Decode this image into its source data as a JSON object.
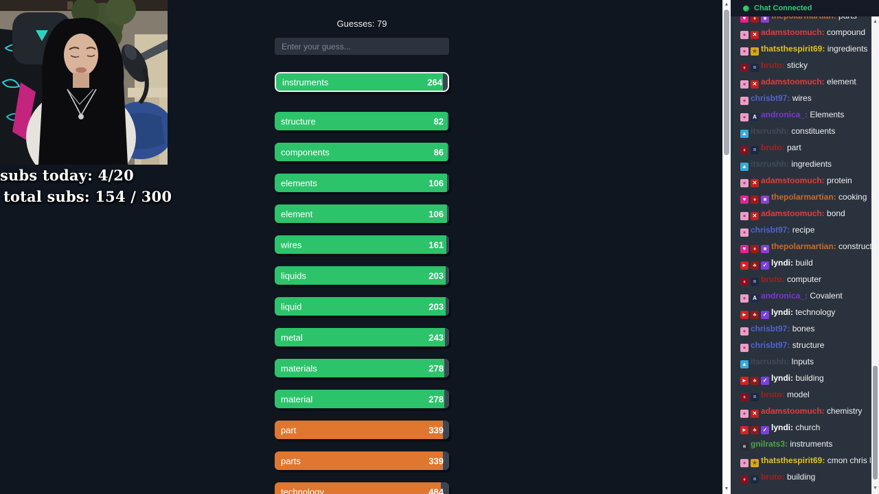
{
  "overlay": {
    "subs_today": "subs today: 4/20",
    "total_subs": "total subs: 154 / 300"
  },
  "game": {
    "guesses_label": "Guesses: 79",
    "input_placeholder": "Enter your guess...",
    "latest_guess": {
      "word": "instruments",
      "score": 264,
      "tier": "green"
    },
    "guesses": [
      {
        "word": "structure",
        "score": 82,
        "tier": "green"
      },
      {
        "word": "components",
        "score": 86,
        "tier": "green"
      },
      {
        "word": "elements",
        "score": 106,
        "tier": "green"
      },
      {
        "word": "element",
        "score": 106,
        "tier": "green"
      },
      {
        "word": "wires",
        "score": 161,
        "tier": "green"
      },
      {
        "word": "liquids",
        "score": 203,
        "tier": "green"
      },
      {
        "word": "liquid",
        "score": 203,
        "tier": "green"
      },
      {
        "word": "metal",
        "score": 243,
        "tier": "green"
      },
      {
        "word": "materials",
        "score": 278,
        "tier": "green"
      },
      {
        "word": "material",
        "score": 278,
        "tier": "green"
      },
      {
        "word": "part",
        "score": 339,
        "tier": "orange"
      },
      {
        "word": "parts",
        "score": 339,
        "tier": "orange"
      },
      {
        "word": "technology",
        "score": 484,
        "tier": "orange"
      }
    ],
    "tier_colors": {
      "green": "#2cc36b",
      "orange": "#e0772f",
      "track": "#3c4653"
    }
  },
  "icons": {
    "scroll_up": "▲",
    "scroll_down": "▼"
  },
  "chat": {
    "header": {
      "label": "Chat Connected",
      "color": "#2ecf76"
    },
    "badge_styles": {
      "pink-heart": {
        "bg": "#e9218e",
        "glyph": "♥",
        "fg": "#ffffff"
      },
      "red-mini": {
        "bg": "#a31818",
        "glyph": "♦",
        "fg": "#f2bcbc"
      },
      "purple-gift": {
        "bg": "#8a3fd1",
        "glyph": "■",
        "fg": "#e6d6ff"
      },
      "pink-boba": {
        "bg": "#eb9fc6",
        "glyph": "●",
        "fg": "#a94579"
      },
      "red-pinwheel": {
        "bg": "#c42020",
        "glyph": "✕",
        "fg": "#ffffff"
      },
      "gold-gift": {
        "bg": "#d8a81b",
        "glyph": "★",
        "fg": "#7a5a00"
      },
      "red-lips": {
        "bg": "#7e1222",
        "glyph": "♦",
        "fg": "#e98a8a"
      },
      "navy-tile": {
        "bg": "#1c2742",
        "glyph": "=",
        "fg": "#cfd8ff"
      },
      "navy-a": {
        "bg": "#1d2b4d",
        "glyph": "A",
        "fg": "#ffffff"
      },
      "skyblue-tile": {
        "bg": "#39a9dc",
        "glyph": "▲",
        "fg": "#ffffff"
      },
      "red-cam": {
        "bg": "#d42222",
        "glyph": "►",
        "fg": "#ffffff"
      },
      "red-cherries": {
        "bg": "#8e1b1b",
        "glyph": "♣",
        "fg": "#f3b9b9"
      },
      "purple-check": {
        "bg": "#7b3fe0",
        "glyph": "✓",
        "fg": "#ffffff"
      },
      "dark-pixel": {
        "bg": "#2a2a33",
        "glyph": "■",
        "fg": "#9aa4b0"
      }
    },
    "messages": [
      {
        "badges": [
          "pink-heart",
          "red-mini",
          "purple-gift"
        ],
        "user": "thepolarmartian",
        "color": "#c76b2e",
        "text": "parts"
      },
      {
        "badges": [
          "pink-boba",
          "red-pinwheel"
        ],
        "user": "adamstoomuch",
        "color": "#e23c3c",
        "text": "compound"
      },
      {
        "badges": [
          "pink-boba",
          "gold-gift"
        ],
        "user": "thatsthespirit69",
        "color": "#e2c022",
        "text": "ingredients"
      },
      {
        "badges": [
          "red-lips",
          "navy-tile"
        ],
        "user": "bruto",
        "color": "#a12020",
        "text": "sticky"
      },
      {
        "badges": [
          "pink-boba",
          "red-pinwheel"
        ],
        "user": "adamstoomuch",
        "color": "#e23c3c",
        "text": "element"
      },
      {
        "badges": [
          "pink-boba"
        ],
        "user": "chrisbt97",
        "color": "#5262d1",
        "text": "wires"
      },
      {
        "badges": [
          "pink-boba",
          "navy-a"
        ],
        "user": "andronica_",
        "color": "#7d35d6",
        "text": "Elements"
      },
      {
        "badges": [
          "skyblue-tile"
        ],
        "user": "itsrrushh",
        "color": "#3e4c58",
        "text": "constituents"
      },
      {
        "badges": [
          "red-lips",
          "navy-tile"
        ],
        "user": "bruto",
        "color": "#a12020",
        "text": "part"
      },
      {
        "badges": [
          "skyblue-tile"
        ],
        "user": "itsrrushh",
        "color": "#3e4c58",
        "text": "ingredients"
      },
      {
        "badges": [
          "pink-boba",
          "red-pinwheel"
        ],
        "user": "adamstoomuch",
        "color": "#e23c3c",
        "text": "protein"
      },
      {
        "badges": [
          "pink-heart",
          "red-mini",
          "purple-gift"
        ],
        "user": "thepolarmartian",
        "color": "#c76b2e",
        "text": "cooking"
      },
      {
        "badges": [
          "pink-boba",
          "red-pinwheel"
        ],
        "user": "adamstoomuch",
        "color": "#e23c3c",
        "text": "bond"
      },
      {
        "badges": [
          "pink-boba"
        ],
        "user": "chrisbt97",
        "color": "#5262d1",
        "text": "recipe"
      },
      {
        "badges": [
          "pink-heart",
          "red-mini",
          "purple-gift"
        ],
        "user": "thepolarmartian",
        "color": "#c76b2e",
        "text": "construction"
      },
      {
        "badges": [
          "red-cam",
          "red-cherries",
          "purple-check"
        ],
        "user": "lyndi",
        "color": "#ffffff",
        "text": "build"
      },
      {
        "badges": [
          "red-lips",
          "navy-tile"
        ],
        "user": "bruto",
        "color": "#a12020",
        "text": "computer"
      },
      {
        "badges": [
          "pink-boba",
          "navy-a"
        ],
        "user": "andronica_",
        "color": "#7d35d6",
        "text": "Covalent"
      },
      {
        "badges": [
          "red-cam",
          "red-cherries",
          "purple-check"
        ],
        "user": "lyndi",
        "color": "#ffffff",
        "text": "technology"
      },
      {
        "badges": [
          "pink-boba"
        ],
        "user": "chrisbt97",
        "color": "#5262d1",
        "text": "bones"
      },
      {
        "badges": [
          "pink-boba"
        ],
        "user": "chrisbt97",
        "color": "#5262d1",
        "text": "structure"
      },
      {
        "badges": [
          "skyblue-tile"
        ],
        "user": "itsrrushh",
        "color": "#3e4c58",
        "text": "Inputs"
      },
      {
        "badges": [
          "red-cam",
          "red-cherries",
          "purple-check"
        ],
        "user": "lyndi",
        "color": "#ffffff",
        "text": "building"
      },
      {
        "badges": [
          "red-lips",
          "navy-tile"
        ],
        "user": "bruto",
        "color": "#a12020",
        "text": "model"
      },
      {
        "badges": [
          "pink-boba",
          "red-pinwheel"
        ],
        "user": "adamstoomuch",
        "color": "#e23c3c",
        "text": "chemistry"
      },
      {
        "badges": [
          "red-cam",
          "red-cherries",
          "purple-check"
        ],
        "user": "lyndi",
        "color": "#ffffff",
        "text": "church"
      },
      {
        "badges": [
          "dark-pixel"
        ],
        "user": "gnilrats3",
        "color": "#52a245",
        "text": "instruments"
      },
      {
        "badges": [
          "pink-boba",
          "gold-gift"
        ],
        "user": "thatsthespirit69",
        "color": "#e2c022",
        "text": "cmon chris lock in"
      },
      {
        "badges": [
          "red-lips",
          "navy-tile"
        ],
        "user": "bruto",
        "color": "#a12020",
        "text": "building"
      }
    ]
  }
}
